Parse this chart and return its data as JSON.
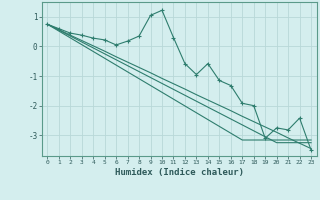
{
  "xlabel": "Humidex (Indice chaleur)",
  "background_color": "#d4eeee",
  "grid_color": "#b8d8d8",
  "line_color": "#2e7d6e",
  "xlim": [
    -0.5,
    23.5
  ],
  "ylim": [
    -3.7,
    1.5
  ],
  "yticks": [
    -3,
    -2,
    -1,
    0,
    1
  ],
  "xticks": [
    0,
    1,
    2,
    3,
    4,
    5,
    6,
    7,
    8,
    9,
    10,
    11,
    12,
    13,
    14,
    15,
    16,
    17,
    18,
    19,
    20,
    21,
    22,
    23
  ],
  "series0": [
    0.75,
    0.6,
    0.45,
    0.38,
    0.28,
    0.22,
    0.05,
    0.18,
    0.35,
    1.05,
    1.22,
    0.3,
    -0.58,
    -0.95,
    -0.58,
    -1.15,
    -1.32,
    -1.92,
    -2.0,
    -3.1,
    -2.75,
    -2.82,
    -2.42,
    -3.5
  ],
  "linear1": [
    0.75,
    0.57,
    0.38,
    0.2,
    0.02,
    -0.16,
    -0.35,
    -0.53,
    -0.71,
    -0.89,
    -1.08,
    -1.26,
    -1.44,
    -1.63,
    -1.81,
    -1.99,
    -2.17,
    -2.36,
    -2.54,
    -2.72,
    -2.9,
    -3.09,
    -3.27,
    -3.45
  ],
  "linear2": [
    0.75,
    0.55,
    0.35,
    0.15,
    -0.05,
    -0.25,
    -0.45,
    -0.65,
    -0.85,
    -1.05,
    -1.25,
    -1.45,
    -1.65,
    -1.85,
    -2.05,
    -2.25,
    -2.45,
    -2.65,
    -2.85,
    -3.05,
    -3.25,
    -3.25,
    -3.25,
    -3.25
  ],
  "linear3": [
    0.75,
    0.52,
    0.29,
    0.06,
    -0.17,
    -0.4,
    -0.63,
    -0.86,
    -1.09,
    -1.32,
    -1.55,
    -1.78,
    -2.01,
    -2.24,
    -2.47,
    -2.7,
    -2.93,
    -3.16,
    -3.16,
    -3.16,
    -3.16,
    -3.16,
    -3.16,
    -3.16
  ]
}
